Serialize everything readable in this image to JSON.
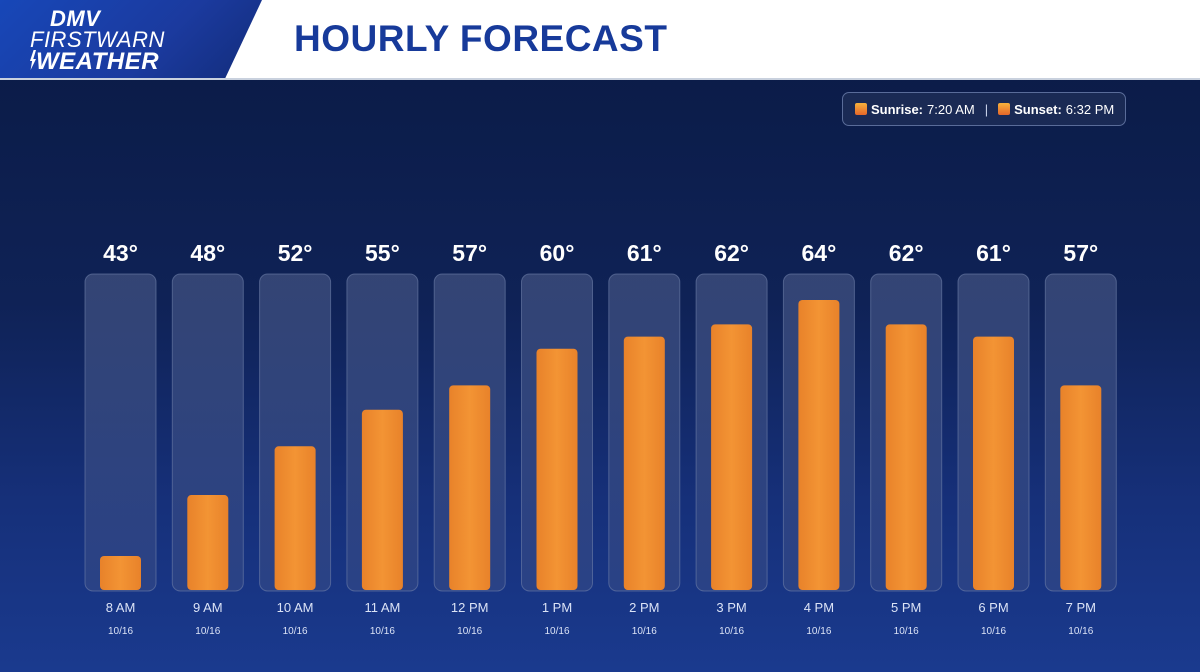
{
  "header": {
    "logo": {
      "line1": "DMV",
      "line2": "FIRSTWARN",
      "line3": "WEATHER"
    },
    "title": "HOURLY FORECAST"
  },
  "sun_info": {
    "sunrise_label": "Sunrise:",
    "sunrise_time": "7:20 AM",
    "separator": "|",
    "sunset_label": "Sunset:",
    "sunset_time": "6:32 PM"
  },
  "colors": {
    "bar": "#f08f30",
    "track": "#3a4b7a",
    "header_title": "#173a9a",
    "background_top": "#0a1a44",
    "background_bottom": "#1a3a8e"
  },
  "chart_data": {
    "type": "bar",
    "categories": [
      "8 AM",
      "9 AM",
      "10 AM",
      "11 AM",
      "12 PM",
      "1 PM",
      "2 PM",
      "3 PM",
      "4 PM",
      "5 PM",
      "6 PM",
      "7 PM"
    ],
    "dates": [
      "10/16",
      "10/16",
      "10/16",
      "10/16",
      "10/16",
      "10/16",
      "10/16",
      "10/16",
      "10/16",
      "10/16",
      "10/16",
      "10/16"
    ],
    "values": [
      43,
      48,
      52,
      55,
      57,
      60,
      61,
      62,
      64,
      62,
      61,
      57
    ],
    "value_labels": [
      "43°",
      "48°",
      "52°",
      "55°",
      "57°",
      "60°",
      "61°",
      "62°",
      "64°",
      "62°",
      "61°",
      "57°"
    ],
    "title": "HOURLY FORECAST",
    "xlabel": "",
    "ylabel": "",
    "ylim": [
      40,
      66
    ],
    "grid": false
  }
}
